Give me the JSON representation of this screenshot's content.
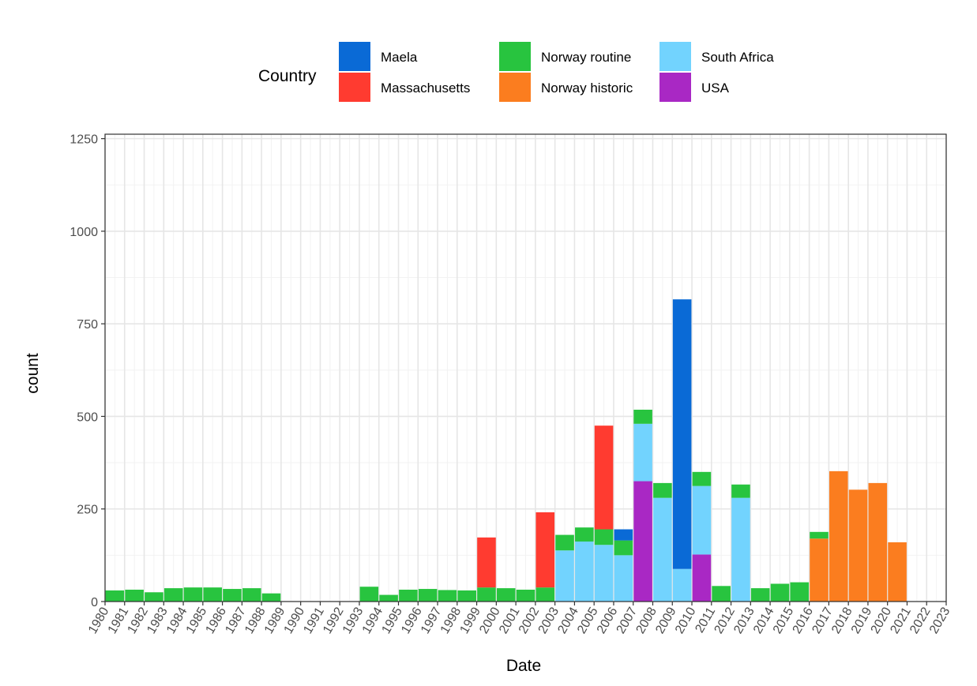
{
  "chart_data": {
    "type": "bar",
    "stacked": true,
    "xlabel": "Date",
    "ylabel": "count",
    "xlim": [
      1980,
      2023
    ],
    "ylim": [
      0,
      1250
    ],
    "y_ticks": [
      0,
      250,
      500,
      750,
      1000,
      1250
    ],
    "x_ticks": [
      "1980",
      "1981",
      "1982",
      "1983",
      "1984",
      "1985",
      "1986",
      "1987",
      "1988",
      "1989",
      "1990",
      "1991",
      "1992",
      "1993",
      "1994",
      "1995",
      "1996",
      "1997",
      "1998",
      "1999",
      "2000",
      "2001",
      "2002",
      "2003",
      "2004",
      "2005",
      "2006",
      "2007",
      "2008",
      "2009",
      "2010",
      "2011",
      "2012",
      "2013",
      "2014",
      "2015",
      "2016",
      "2017",
      "2018",
      "2019",
      "2020",
      "2021",
      "2022",
      "2023"
    ],
    "grid": true,
    "legend": {
      "title": "Country",
      "position": "top",
      "entries": [
        {
          "name": "Maela",
          "color": "#0a6ad6"
        },
        {
          "name": "Massachusetts",
          "color": "#ff3b30"
        },
        {
          "name": "Norway routine",
          "color": "#28c43f"
        },
        {
          "name": "Norway historic",
          "color": "#fb7d1f"
        },
        {
          "name": "South Africa",
          "color": "#72d3fe"
        },
        {
          "name": "USA",
          "color": "#a928c4"
        }
      ]
    },
    "stack_order": [
      "USA",
      "South Africa",
      "Norway historic",
      "Norway routine",
      "Massachusetts",
      "Maela"
    ],
    "bins": [
      {
        "start": 1980,
        "Norway routine": 30
      },
      {
        "start": 1981,
        "Norway routine": 32
      },
      {
        "start": 1982,
        "Norway routine": 25
      },
      {
        "start": 1983,
        "Norway routine": 36
      },
      {
        "start": 1984,
        "Norway routine": 38
      },
      {
        "start": 1985,
        "Norway routine": 38
      },
      {
        "start": 1986,
        "Norway routine": 34
      },
      {
        "start": 1987,
        "Norway routine": 36
      },
      {
        "start": 1988,
        "Norway routine": 22
      },
      {
        "start": 1993,
        "Norway routine": 40
      },
      {
        "start": 1994,
        "Norway routine": 18
      },
      {
        "start": 1995,
        "Norway routine": 32
      },
      {
        "start": 1996,
        "Norway routine": 34
      },
      {
        "start": 1997,
        "Norway routine": 31
      },
      {
        "start": 1998,
        "Norway routine": 30
      },
      {
        "start": 1999,
        "Norway routine": 38,
        "Massachusetts": 135
      },
      {
        "start": 2000,
        "Norway routine": 36
      },
      {
        "start": 2001,
        "Norway routine": 32
      },
      {
        "start": 2002,
        "Norway routine": 38,
        "Massachusetts": 203
      },
      {
        "start": 2003,
        "South Africa": 138,
        "Norway routine": 42
      },
      {
        "start": 2004,
        "South Africa": 162,
        "Norway routine": 38
      },
      {
        "start": 2005,
        "South Africa": 153,
        "Norway routine": 42,
        "Massachusetts": 280
      },
      {
        "start": 2006,
        "South Africa": 125,
        "Norway routine": 40,
        "Maela": 30
      },
      {
        "start": 2007,
        "USA": 325,
        "South Africa": 155,
        "Norway routine": 38
      },
      {
        "start": 2008,
        "South Africa": 280,
        "Norway routine": 40
      },
      {
        "start": 2009,
        "South Africa": 88,
        "Maela": 728
      },
      {
        "start": 2010,
        "USA": 127,
        "South Africa": 185,
        "Norway routine": 38
      },
      {
        "start": 2011,
        "Norway routine": 42
      },
      {
        "start": 2012,
        "South Africa": 280,
        "Norway routine": 36
      },
      {
        "start": 2013,
        "Norway routine": 36
      },
      {
        "start": 2014,
        "Norway routine": 48
      },
      {
        "start": 2015,
        "Norway routine": 52
      },
      {
        "start": 2016,
        "Norway historic": 170,
        "Norway routine": 18
      },
      {
        "start": 2017,
        "Norway historic": 352
      },
      {
        "start": 2018,
        "Norway historic": 302
      },
      {
        "start": 2019,
        "Norway historic": 320
      },
      {
        "start": 2020,
        "Norway historic": 160
      }
    ]
  }
}
